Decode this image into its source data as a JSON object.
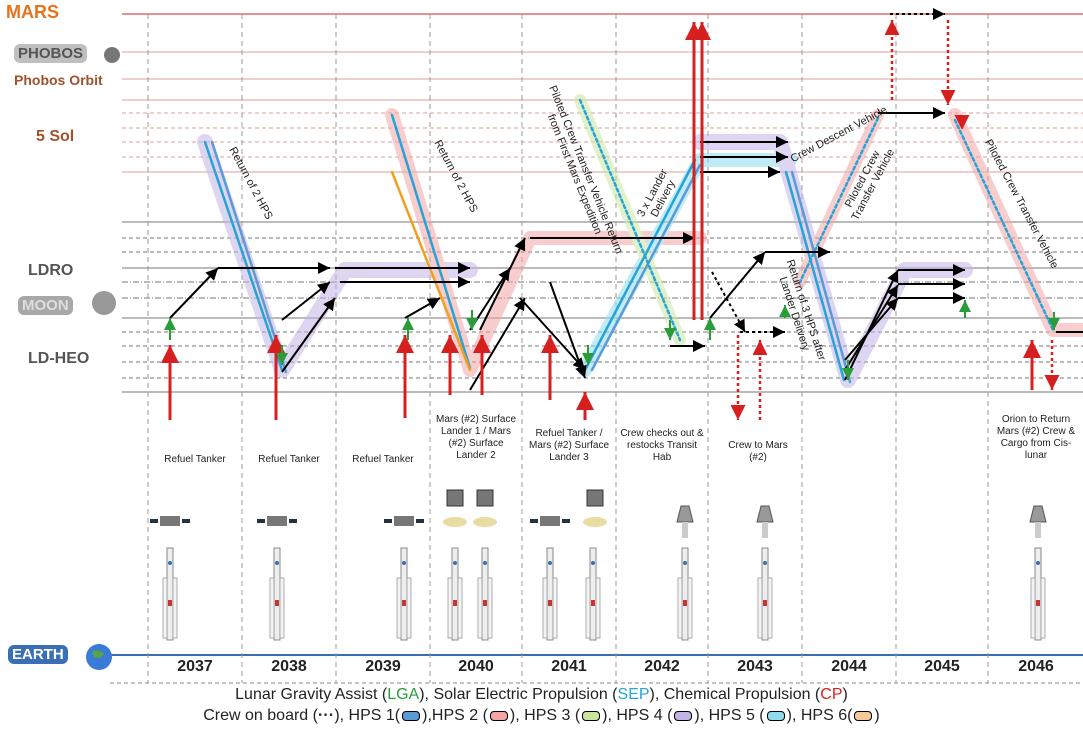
{
  "levels": {
    "mars": "MARS",
    "phobos": "PHOBOS",
    "phobos_orbit": "Phobos Orbit",
    "sol": "5 Sol",
    "ldro": "LDRO",
    "moon": "MOON",
    "ldheo": "LD-HEO",
    "earth": "EARTH"
  },
  "years": [
    "2037",
    "2038",
    "2039",
    "2040",
    "2041",
    "2042",
    "2043",
    "2044",
    "2045",
    "2046"
  ],
  "captions": {
    "c2037": "Refuel Tanker",
    "c2038": "Refuel Tanker",
    "c2039": "Refuel Tanker",
    "c2040": "Mars (#2) Surface Lander 1 / Mars (#2) Surface Lander 2",
    "c2041": "Refuel Tanker / Mars (#2) Surface Lander 3",
    "c2042": "Crew checks out & restocks Transit Hab",
    "c2043": "Crew to Mars (#2)",
    "c2046": "Orion to Return Mars (#2) Crew & Cargo from Cis-lunar"
  },
  "annotations": {
    "a1": "Return of 2 HPS",
    "a2": "Return of 2 HPS",
    "a3": "Piloted Crew Transfer Vehicle Return from First Mars Expedition",
    "a4": "3 x Lander Delivery",
    "a5": "Crew Descent Vehicle",
    "a6": "Piloted Crew Transfer Vehicle",
    "a7": "Return of 3 HPS after Lander Delivery",
    "a8": "Piloted Crew Transfer Vehicle"
  },
  "legend": {
    "line1_pre": "Lunar Gravity Assist (",
    "lga": "LGA",
    "line1_mid1": "), Solar Electric Propulsion (",
    "sep": "SEP",
    "line1_mid2": "), Chemical Propulsion (",
    "cp": "CP",
    "line1_end": ")",
    "crew": "Crew on board (",
    "crew_end": "),",
    "hps1": "HPS 1(",
    "hps2": "),HPS 2 (",
    "hps3": "), HPS 3 (",
    "hps4": "), HPS 4 (",
    "hps5": "), HPS 5 (",
    "hps6": "), HPS 6(",
    "close": ")"
  },
  "colors": {
    "mars": "#e8721c",
    "cp": "#d62020",
    "lga": "#2a9d3a",
    "sep": "#27a3d6",
    "hps1": "#5b9bd5",
    "hps2": "#f4a6a6",
    "hps3": "#c9e6a1",
    "hps4": "#c3b3e6",
    "hps5": "#8fdcef",
    "hps6": "#f6c89a"
  }
}
